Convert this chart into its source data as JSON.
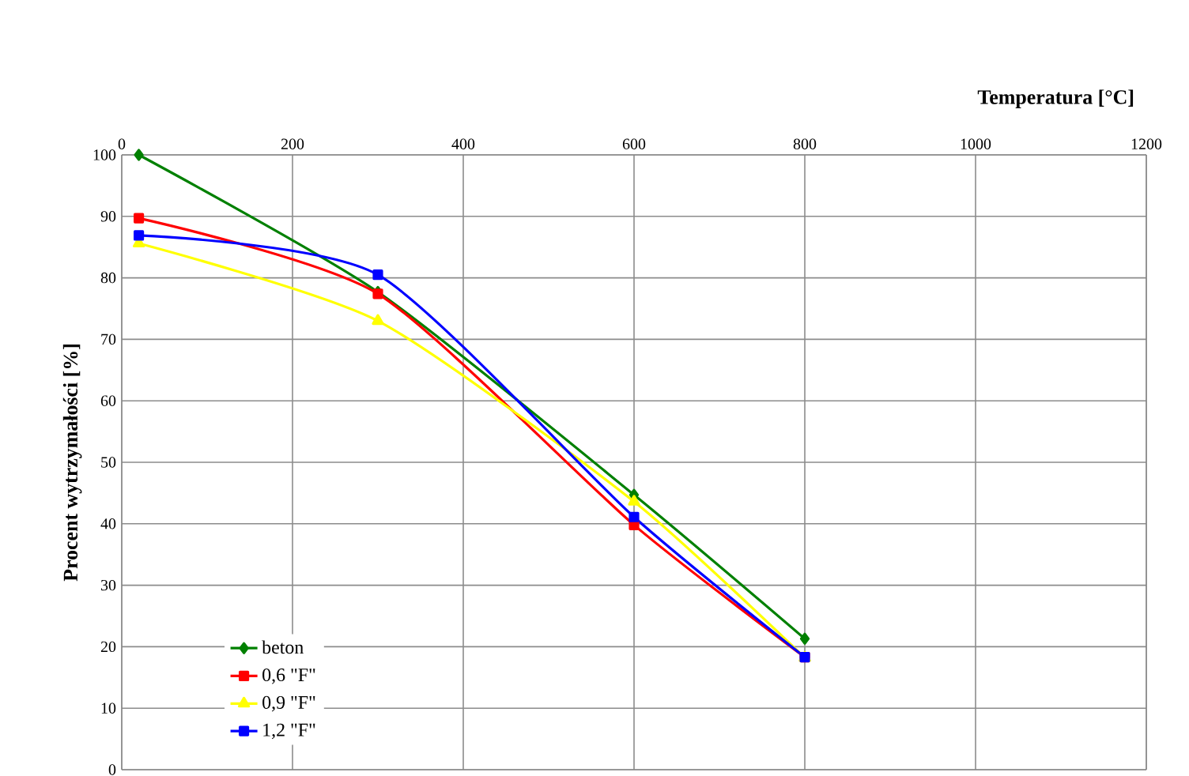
{
  "chart_data": {
    "type": "line",
    "xlabel": "Temperatura [°C]",
    "ylabel": "Procent wytrzymałości [%]",
    "xlim": [
      0,
      1200
    ],
    "xticks": [
      0,
      200,
      400,
      600,
      800,
      1000,
      1200
    ],
    "ylim": [
      0,
      100
    ],
    "yticks": [
      0,
      10,
      20,
      30,
      40,
      50,
      60,
      70,
      80,
      90,
      100
    ],
    "grid": true,
    "legend": "bottom left",
    "series": [
      {
        "name": "beton",
        "color": "#008000",
        "marker": "diamond",
        "x": [
          20,
          300,
          600,
          800
        ],
        "values": [
          100,
          77.7,
          44.7,
          21.3
        ]
      },
      {
        "name": "0,6 \"F\"",
        "color": "#ff0000",
        "marker": "square",
        "x": [
          20,
          300,
          600,
          800
        ],
        "values": [
          89.7,
          77.4,
          39.8,
          18.3
        ]
      },
      {
        "name": "0,9 \"F\"",
        "color": "#ffff00",
        "marker": "triangle",
        "x": [
          20,
          300,
          600,
          800
        ],
        "values": [
          85.6,
          73,
          43.6,
          18.2
        ]
      },
      {
        "name": "1,2 \"F\"",
        "color": "#0000ff",
        "marker": "square",
        "x": [
          20,
          300,
          600,
          800
        ],
        "values": [
          86.9,
          80.5,
          41.1,
          18.3
        ]
      }
    ]
  }
}
